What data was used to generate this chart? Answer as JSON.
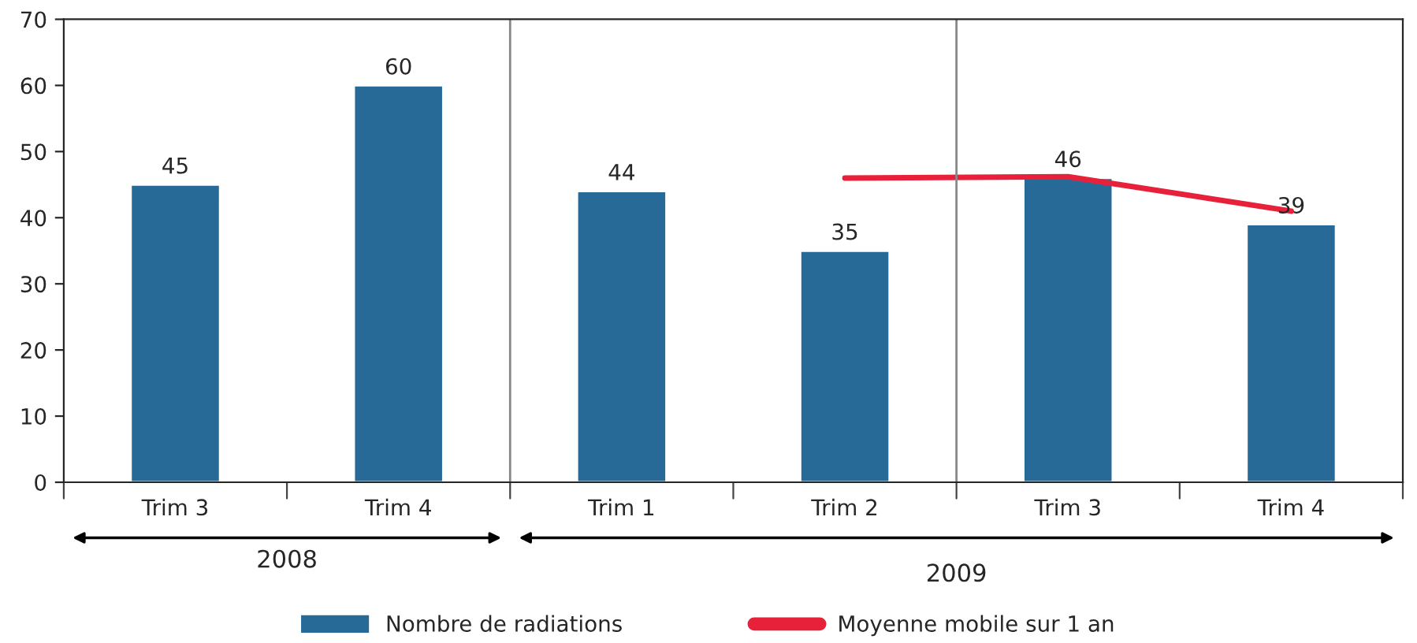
{
  "chart_data": {
    "type": "bar",
    "categories": [
      "Trim 3",
      "Trim 4",
      "Trim 1",
      "Trim 2",
      "Trim 3",
      "Trim 4"
    ],
    "series": [
      {
        "name": "Nombre de radiations",
        "color": "#276a98",
        "values": [
          45,
          60,
          44,
          35,
          46,
          39
        ],
        "value_labels": [
          "45",
          "60",
          "44",
          "35",
          "46",
          "39"
        ]
      },
      {
        "name": "Moyenne mobile sur 1 an",
        "type": "line",
        "color": "#e8213a",
        "values": [
          null,
          null,
          null,
          46,
          46.2,
          41
        ]
      }
    ],
    "ylim": [
      0,
      70
    ],
    "yticks": [
      0,
      10,
      20,
      30,
      40,
      50,
      60,
      70
    ],
    "grid": false,
    "legend": "bottom",
    "marker": "none",
    "annotations": [
      "2008",
      "2009"
    ]
  }
}
